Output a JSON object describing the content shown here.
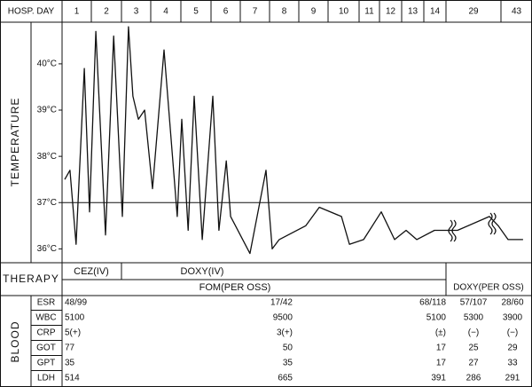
{
  "chart_data": {
    "type": "line",
    "xlabel": "HOSP. DAY",
    "ylabel": "TEMPERATURE",
    "xticks": [
      1,
      2,
      3,
      4,
      5,
      6,
      7,
      8,
      9,
      10,
      11,
      12,
      13,
      14,
      29,
      43
    ],
    "x": [
      0.59,
      0.77,
      0.98,
      1.26,
      1.44,
      1.65,
      1.97,
      2.24,
      2.53,
      2.74,
      2.89,
      3.08,
      3.29,
      3.56,
      3.94,
      4.38,
      4.53,
      4.74,
      4.94,
      5.21,
      5.56,
      5.77,
      6.02,
      6.17,
      6.83,
      7.38,
      7.59,
      7.83,
      8.74,
      9.2,
      9.93,
      10.19,
      10.72,
      11.58,
      12.18,
      12.7,
      13.18,
      13.98,
      14.48,
      28.71,
      29.29,
      29.45,
      42.73,
      43.21
    ],
    "values": [
      37.5,
      37.7,
      36.1,
      39.9,
      36.8,
      40.7,
      36.3,
      40.6,
      36.7,
      40.8,
      39.3,
      38.8,
      39.0,
      37.3,
      40.3,
      36.7,
      38.8,
      36.4,
      39.3,
      36.2,
      39.3,
      36.4,
      37.9,
      36.7,
      35.9,
      37.7,
      36.0,
      36.2,
      36.5,
      36.9,
      36.7,
      36.1,
      36.2,
      36.8,
      36.2,
      36.4,
      36.2,
      36.4,
      36.4,
      36.4,
      36.7,
      36.5,
      36.2,
      36.2
    ],
    "color": "#111111",
    "ylim": [
      35.7,
      40.9
    ],
    "yticks": [
      {
        "value": 36,
        "label": "36°C"
      },
      {
        "value": 37,
        "label": "37°C"
      },
      {
        "value": 38,
        "label": "38°C"
      },
      {
        "value": 39,
        "label": "39°C"
      },
      {
        "value": 40,
        "label": "40°C"
      }
    ],
    "reference_line": 37
  },
  "therapy": {
    "label": "THERAPY",
    "items": [
      "CEZ(IV)",
      "DOXY(IV)",
      "FOM(PER OSS)",
      "DOXY(PER OSS)"
    ]
  },
  "blood": {
    "label": "BLOOD",
    "rows": [
      {
        "name": "ESR",
        "values": [
          "48/99",
          "17/42",
          "68/118",
          "57/107",
          "28/60"
        ]
      },
      {
        "name": "WBC",
        "values": [
          5100,
          9500,
          5100,
          5300,
          3900
        ]
      },
      {
        "name": "CRP",
        "values": [
          "5(+)",
          "3(+)",
          "(±)",
          "(−)",
          "(−)"
        ]
      },
      {
        "name": "GOT",
        "values": [
          77,
          50,
          17,
          25,
          29
        ]
      },
      {
        "name": "GPT",
        "values": [
          35,
          35,
          17,
          27,
          33
        ]
      },
      {
        "name": "LDH",
        "values": [
          514,
          665,
          391,
          286,
          291
        ]
      }
    ]
  }
}
